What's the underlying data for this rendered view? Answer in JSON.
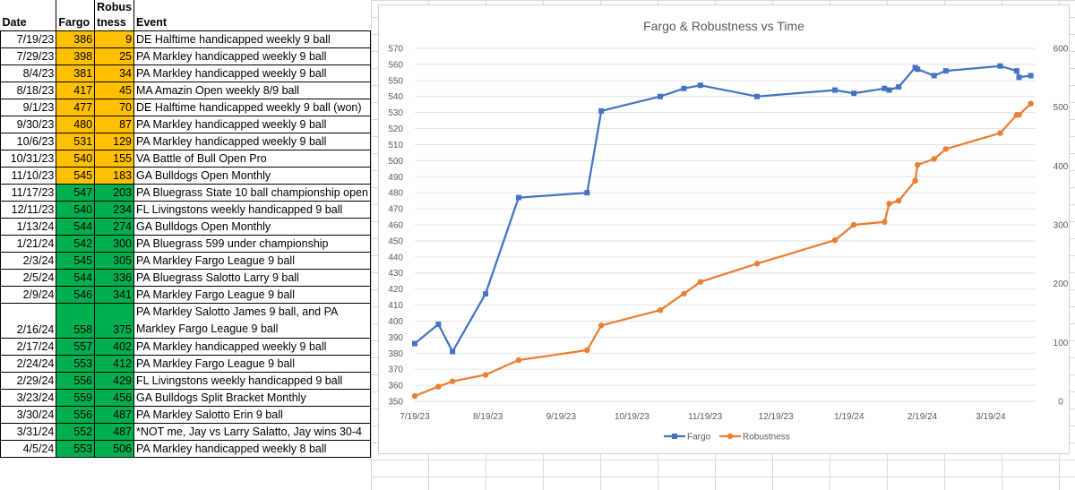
{
  "table": {
    "headers": {
      "date": "Date",
      "fargo": "Fargo",
      "robust_line1": "Robus",
      "robust_line2": "tness",
      "event": "Event"
    },
    "rows": [
      {
        "date": "7/19/23",
        "fargo": "386",
        "robustness": "9",
        "event": "DE Halftime handicapped weekly 9 ball",
        "color": "yellow"
      },
      {
        "date": "7/29/23",
        "fargo": "398",
        "robustness": "25",
        "event": "PA Markley handicapped weekly 9 ball",
        "color": "yellow"
      },
      {
        "date": "8/4/23",
        "fargo": "381",
        "robustness": "34",
        "event": "PA Markley handicapped weekly 9 ball",
        "color": "yellow"
      },
      {
        "date": "8/18/23",
        "fargo": "417",
        "robustness": "45",
        "event": "MA Amazin Open weekly 8/9 ball",
        "color": "yellow"
      },
      {
        "date": "9/1/23",
        "fargo": "477",
        "robustness": "70",
        "event": "DE Halftime handicapped weekly 9 ball (won)",
        "color": "yellow"
      },
      {
        "date": "9/30/23",
        "fargo": "480",
        "robustness": "87",
        "event": "PA Markley handicapped weekly 9 ball",
        "color": "yellow"
      },
      {
        "date": "10/6/23",
        "fargo": "531",
        "robustness": "129",
        "event": "PA Markley handicapped weekly 9 ball",
        "color": "yellow"
      },
      {
        "date": "10/31/23",
        "fargo": "540",
        "robustness": "155",
        "event": "VA Battle of Bull Open Pro",
        "color": "yellow"
      },
      {
        "date": "11/10/23",
        "fargo": "545",
        "robustness": "183",
        "event": "GA Bulldogs Open Monthly",
        "color": "yellow"
      },
      {
        "date": "11/17/23",
        "fargo": "547",
        "robustness": "203",
        "event": "PA Bluegrass State 10 ball championship open",
        "color": "green"
      },
      {
        "date": "12/11/23",
        "fargo": "540",
        "robustness": "234",
        "event": "FL Livingstons weekly handicapped 9 ball",
        "color": "green"
      },
      {
        "date": "1/13/24",
        "fargo": "544",
        "robustness": "274",
        "event": "GA Bulldogs Open Monthly",
        "color": "green"
      },
      {
        "date": "1/21/24",
        "fargo": "542",
        "robustness": "300",
        "event": "PA Bluegrass 599 under championship",
        "color": "green"
      },
      {
        "date": "2/3/24",
        "fargo": "545",
        "robustness": "305",
        "event": "PA Markley Fargo League 9 ball",
        "color": "green"
      },
      {
        "date": "2/5/24",
        "fargo": "544",
        "robustness": "336",
        "event": "PA Bluegrass Salotto Larry 9 ball",
        "color": "green"
      },
      {
        "date": "2/9/24",
        "fargo": "546",
        "robustness": "341",
        "event": "PA Markley Fargo League 9 ball",
        "color": "green"
      },
      {
        "date": "2/16/24",
        "fargo": "558",
        "robustness": "375",
        "event": "PA Markley Salotto James 9 ball, and PA Markley Fargo League 9 ball",
        "color": "green",
        "wrap": true
      },
      {
        "date": "2/17/24",
        "fargo": "557",
        "robustness": "402",
        "event": "PA Markley handicapped weekly 9 ball",
        "color": "green"
      },
      {
        "date": "2/24/24",
        "fargo": "553",
        "robustness": "412",
        "event": "PA Markley Fargo League 9 ball",
        "color": "green"
      },
      {
        "date": "2/29/24",
        "fargo": "556",
        "robustness": "429",
        "event": "FL Livingstons weekly handicapped 9 ball",
        "color": "green"
      },
      {
        "date": "3/23/24",
        "fargo": "559",
        "robustness": "456",
        "event": "GA Bulldogs Split Bracket Monthly",
        "color": "green"
      },
      {
        "date": "3/30/24",
        "fargo": "556",
        "robustness": "487",
        "event": "PA Markley Salotto Erin 9 ball",
        "color": "green"
      },
      {
        "date": "3/31/24",
        "fargo": "552",
        "robustness": "487",
        "event": "*NOT me, Jay vs Larry Salatto, Jay wins 30-4",
        "color": "green"
      },
      {
        "date": "4/5/24",
        "fargo": "553",
        "robustness": "506",
        "event": "PA Markley handicapped weekly 8 ball",
        "color": "green"
      }
    ]
  },
  "colors": {
    "yellow": "#ffc000",
    "green": "#00b050",
    "fargo_series": "#4472c4",
    "robustness_series": "#ed7d31"
  },
  "chart_data": {
    "type": "line",
    "title": "Fargo & Robustness vs Time",
    "x_tick_labels": [
      "7/19/23",
      "8/19/23",
      "9/19/23",
      "10/19/23",
      "11/19/23",
      "12/19/23",
      "1/19/24",
      "2/19/24",
      "3/19/24"
    ],
    "x_ticks": [
      "2023-07-19",
      "2023-08-19",
      "2023-09-19",
      "2023-10-19",
      "2023-11-19",
      "2023-12-19",
      "2024-01-19",
      "2024-02-19",
      "2024-03-19"
    ],
    "xlim": [
      "2023-07-19",
      "2024-04-07"
    ],
    "y_left": {
      "min": 350,
      "max": 570,
      "step": 10
    },
    "y_right": {
      "min": 0,
      "max": 600,
      "step": 100
    },
    "legend_position": "bottom",
    "gridlines": true,
    "series": [
      {
        "name": "Fargo",
        "axis": "left",
        "marker": "square",
        "points": [
          [
            "2023-07-19",
            386
          ],
          [
            "2023-07-29",
            398
          ],
          [
            "2023-08-04",
            381
          ],
          [
            "2023-08-18",
            417
          ],
          [
            "2023-09-01",
            477
          ],
          [
            "2023-09-30",
            480
          ],
          [
            "2023-10-06",
            531
          ],
          [
            "2023-10-31",
            540
          ],
          [
            "2023-11-10",
            545
          ],
          [
            "2023-11-17",
            547
          ],
          [
            "2023-12-11",
            540
          ],
          [
            "2024-01-13",
            544
          ],
          [
            "2024-01-21",
            542
          ],
          [
            "2024-02-03",
            545
          ],
          [
            "2024-02-05",
            544
          ],
          [
            "2024-02-09",
            546
          ],
          [
            "2024-02-16",
            558
          ],
          [
            "2024-02-17",
            557
          ],
          [
            "2024-02-24",
            553
          ],
          [
            "2024-02-29",
            556
          ],
          [
            "2024-03-23",
            559
          ],
          [
            "2024-03-30",
            556
          ],
          [
            "2024-03-31",
            552
          ],
          [
            "2024-04-05",
            553
          ]
        ]
      },
      {
        "name": "Robustness",
        "axis": "right",
        "marker": "circle",
        "points": [
          [
            "2023-07-19",
            9
          ],
          [
            "2023-07-29",
            25
          ],
          [
            "2023-08-04",
            34
          ],
          [
            "2023-08-18",
            45
          ],
          [
            "2023-09-01",
            70
          ],
          [
            "2023-09-30",
            87
          ],
          [
            "2023-10-06",
            129
          ],
          [
            "2023-10-31",
            155
          ],
          [
            "2023-11-10",
            183
          ],
          [
            "2023-11-17",
            203
          ],
          [
            "2023-12-11",
            234
          ],
          [
            "2024-01-13",
            274
          ],
          [
            "2024-01-21",
            300
          ],
          [
            "2024-02-03",
            305
          ],
          [
            "2024-02-05",
            336
          ],
          [
            "2024-02-09",
            341
          ],
          [
            "2024-02-16",
            375
          ],
          [
            "2024-02-17",
            402
          ],
          [
            "2024-02-24",
            412
          ],
          [
            "2024-02-29",
            429
          ],
          [
            "2024-03-23",
            456
          ],
          [
            "2024-03-30",
            487
          ],
          [
            "2024-03-31",
            487
          ],
          [
            "2024-04-05",
            506
          ]
        ]
      }
    ]
  }
}
